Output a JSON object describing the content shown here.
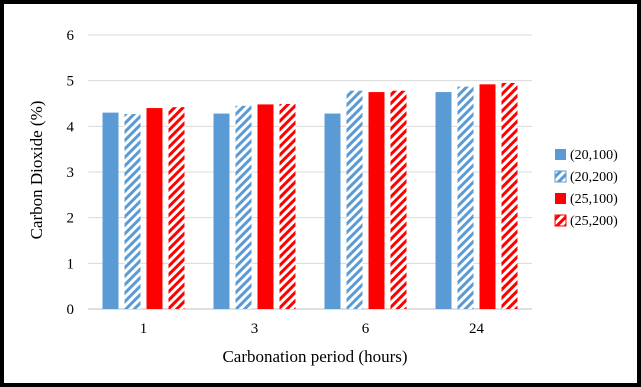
{
  "chart_data": {
    "type": "bar",
    "title": "",
    "xlabel": "Carbonation period (hours)",
    "ylabel": "Carbon Dioxide (%)",
    "categories": [
      "1",
      "3",
      "6",
      "24"
    ],
    "ylim": [
      0,
      6
    ],
    "yticks": [
      "0",
      "1",
      "2",
      "3",
      "4",
      "5",
      "6"
    ],
    "grid": true,
    "legend_position": "right",
    "series": [
      {
        "name": "(20,100)",
        "color": "#5B9BD5",
        "pattern": "solid",
        "values": [
          4.3,
          4.28,
          4.28,
          4.75
        ]
      },
      {
        "name": "(20,200)",
        "color": "#5B9BD5",
        "pattern": "hatched",
        "values": [
          4.27,
          4.45,
          4.78,
          4.87
        ]
      },
      {
        "name": "(25,100)",
        "color": "#FF0000",
        "pattern": "solid",
        "values": [
          4.4,
          4.48,
          4.75,
          4.92
        ]
      },
      {
        "name": "(25,200)",
        "color": "#FF0000",
        "pattern": "hatched",
        "values": [
          4.42,
          4.49,
          4.78,
          4.95
        ]
      }
    ]
  }
}
